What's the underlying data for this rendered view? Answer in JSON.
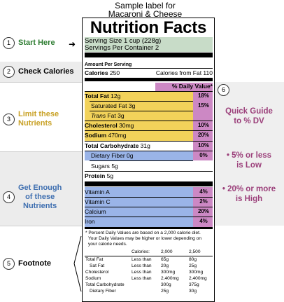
{
  "header": {
    "line1": "Sample label for",
    "line2": "Macaroni & Cheese"
  },
  "steps": [
    {
      "num": "1",
      "text": "Start Here",
      "color": "#2e7d32"
    },
    {
      "num": "2",
      "text": "Check Calories",
      "color": "#000000"
    },
    {
      "num": "3",
      "text1": "Limit these",
      "text2": "Nutrients",
      "color": "#c9a227"
    },
    {
      "num": "4",
      "text1": "Get Enough",
      "text2": "of these",
      "text3": "Nutrients",
      "color": "#3f6fb0"
    },
    {
      "num": "5",
      "text": "Footnote",
      "color": "#000000"
    }
  ],
  "label": {
    "title": "Nutrition Facts",
    "serving_size": "Serving Size 1 cup (228g)",
    "servings_per_container": "Servings Per Container  2",
    "amount_per_serving": "Amount Per Serving",
    "calories_label": "Calories",
    "calories_value": "250",
    "calories_fat": "Calories from Fat 110",
    "dv_header": "% Daily Value*",
    "limit_rows": [
      {
        "name": "Total Fat",
        "amount": "12g",
        "pct": "18%"
      },
      {
        "name": "Saturated Fat",
        "amount": "3g",
        "pct": "15%"
      },
      {
        "name": "Trans",
        "name2": " Fat",
        "amount": "3g",
        "pct": ""
      },
      {
        "name": "Cholesterol",
        "amount": "30mg",
        "pct": "10%"
      },
      {
        "name": "Sodium",
        "amount": "470mg",
        "pct": "20%"
      }
    ],
    "carb_row": {
      "name": "Total Carbohydrate",
      "amount": "31g",
      "pct": "10%"
    },
    "fiber_row": {
      "name": "Dietary Fiber",
      "amount": "0g",
      "pct": "0%"
    },
    "sugars_row": {
      "name": "Sugars",
      "amount": "5g"
    },
    "protein_row": {
      "name": "Protein",
      "amount": "5g"
    },
    "vitamins": [
      {
        "name": "Vitamin A",
        "pct": "4%"
      },
      {
        "name": "Vitamin C",
        "pct": "2%"
      },
      {
        "name": "Calcium",
        "pct": "20%"
      },
      {
        "name": "Iron",
        "pct": "4%"
      }
    ],
    "footnote_line1": "* Percent Daily Values are based on a 2,000 calorie diet.",
    "footnote_line2": "Your Daily Values may be higher or lower depending on",
    "footnote_line3": "your calorie needs.",
    "table_header": {
      "col0": "",
      "col1": "Calories:",
      "col2": "2,000",
      "col3": "2,500"
    },
    "table_rows": [
      {
        "n": "Total Fat",
        "q": "Less than",
        "a": "65g",
        "b": "80g"
      },
      {
        "n": "Sat Fat",
        "q": "Less than",
        "a": "20g",
        "b": "25g"
      },
      {
        "n": "Cholesterol",
        "q": "Less than",
        "a": "300mg",
        "b": "300mg"
      },
      {
        "n": "Sodium",
        "q": "Less than",
        "a": "2,400mg",
        "b": "2,400mg"
      },
      {
        "n": "Total Carbohydrate",
        "q": "",
        "a": "300g",
        "b": "375g"
      },
      {
        "n": "Dietary Fiber",
        "q": "",
        "a": "25g",
        "b": "30g"
      }
    ]
  },
  "guide": {
    "num": "6",
    "line1": "Quick Guide",
    "line2": "to % DV",
    "low1": "• 5% or less",
    "low2": "is Low",
    "high1": "• 20% or more",
    "high2": "is High"
  },
  "colors": {
    "green_band": "#c8dcc8",
    "yellow_band": "#f2d25a",
    "blue_band": "#9ab4e8",
    "pink_band": "#cc88c4",
    "guide_text": "#9b3f7a"
  }
}
